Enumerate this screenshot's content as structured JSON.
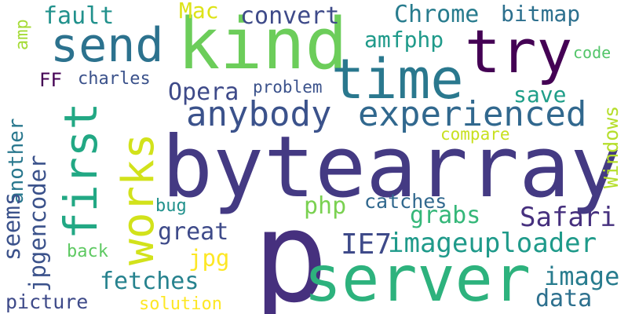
{
  "words": [
    {
      "text": "p",
      "color": "#46307e",
      "rotated": false
    },
    {
      "text": "bytearray",
      "color": "#443a83",
      "rotated": false
    },
    {
      "text": "server",
      "color": "#2db27d",
      "rotated": false
    },
    {
      "text": "kind",
      "color": "#6ccd5a",
      "rotated": false
    },
    {
      "text": "time",
      "color": "#2a788e",
      "rotated": false
    },
    {
      "text": "send",
      "color": "#2c728e",
      "rotated": false
    },
    {
      "text": "try",
      "color": "#440154",
      "rotated": false
    },
    {
      "text": "first",
      "color": "#22a884",
      "rotated": true
    },
    {
      "text": "works",
      "color": "#d2e21b",
      "rotated": true
    },
    {
      "text": "anybody",
      "color": "#3b528b",
      "rotated": false
    },
    {
      "text": "experienced",
      "color": "#31688e",
      "rotated": false
    },
    {
      "text": "Chrome",
      "color": "#287c8e",
      "rotated": false
    },
    {
      "text": "convert",
      "color": "#3e4a89",
      "rotated": false
    },
    {
      "text": "fault",
      "color": "#21918c",
      "rotated": false
    },
    {
      "text": "bitmap",
      "color": "#2d708e",
      "rotated": false
    },
    {
      "text": "Mac",
      "color": "#dde318",
      "rotated": false
    },
    {
      "text": "amfphp",
      "color": "#1f9a8a",
      "rotated": false
    },
    {
      "text": "code",
      "color": "#52c569",
      "rotated": false
    },
    {
      "text": "amp",
      "color": "#a5db36",
      "rotated": true
    },
    {
      "text": "FF",
      "color": "#440154",
      "rotated": false
    },
    {
      "text": "charles",
      "color": "#3b528b",
      "rotated": false
    },
    {
      "text": "Opera",
      "color": "#3e4a89",
      "rotated": false
    },
    {
      "text": "problem",
      "color": "#3b528b",
      "rotated": false
    },
    {
      "text": "save",
      "color": "#1f9e89",
      "rotated": false
    },
    {
      "text": "Windows",
      "color": "#b5de2b",
      "rotated": true
    },
    {
      "text": "another",
      "color": "#2a788e",
      "rotated": true
    },
    {
      "text": "compare",
      "color": "#c8e020",
      "rotated": false
    },
    {
      "text": "seems",
      "color": "#3b528b",
      "rotated": true
    },
    {
      "text": "jpgencoder",
      "color": "#3b528b",
      "rotated": true
    },
    {
      "text": "php",
      "color": "#7ad151",
      "rotated": false
    },
    {
      "text": "catches",
      "color": "#31688e",
      "rotated": false
    },
    {
      "text": "grabs",
      "color": "#35b779",
      "rotated": false
    },
    {
      "text": "Safari",
      "color": "#46307e",
      "rotated": false
    },
    {
      "text": "bug",
      "color": "#21918c",
      "rotated": false
    },
    {
      "text": "great",
      "color": "#3e4a89",
      "rotated": false
    },
    {
      "text": "IE7",
      "color": "#3e4a89",
      "rotated": false
    },
    {
      "text": "imageuploader",
      "color": "#1f9a8a",
      "rotated": false
    },
    {
      "text": "back",
      "color": "#5ec962",
      "rotated": false
    },
    {
      "text": "jpg",
      "color": "#fde725",
      "rotated": false
    },
    {
      "text": "fetches",
      "color": "#26828e",
      "rotated": false
    },
    {
      "text": "image",
      "color": "#287c8e",
      "rotated": false
    },
    {
      "text": "data",
      "color": "#2d708e",
      "rotated": false
    },
    {
      "text": "picture",
      "color": "#3e4a89",
      "rotated": false
    },
    {
      "text": "solution",
      "color": "#fde725",
      "rotated": false
    }
  ]
}
